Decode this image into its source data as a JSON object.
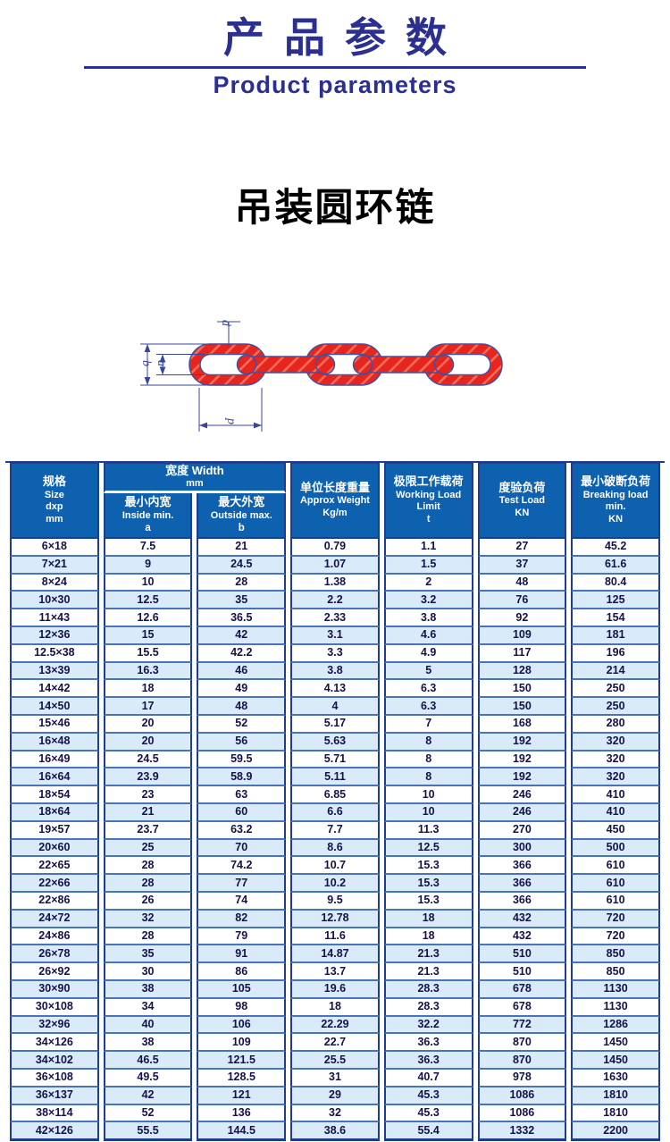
{
  "banner": {
    "title_cn": "产品参数",
    "title_en": "Product parameters"
  },
  "product": {
    "name": "吊装圆环链"
  },
  "diagram": {
    "dim_d": "d",
    "dim_a": "a",
    "dim_b": "b",
    "dim_p": "p"
  },
  "colors": {
    "accent_navy": "#2b2f90",
    "header_blue": "#0d61ae",
    "row_alt_blue": "#d9eaf8",
    "border_navy": "#1f3d8f",
    "row_line_blue": "#4a74ba",
    "chain_red": "#e8251d",
    "chain_outline_blue": "#4350a0"
  },
  "table": {
    "header": {
      "size": {
        "cn": "规格",
        "en": "Size",
        "l3": "dxp",
        "l4": "mm"
      },
      "width_group": {
        "cn_en": "宽度 Width",
        "unit": "mm"
      },
      "inside": {
        "cn": "最小内宽",
        "en": "Inside min.",
        "sub": "a"
      },
      "outside": {
        "cn": "最大外宽",
        "en": "Outside max.",
        "sub": "b"
      },
      "weight": {
        "cn": "单位长度重量",
        "en": "Approx Weight",
        "unit": "Kg/m"
      },
      "wll": {
        "cn": "极限工作载荷",
        "en": "Working Load Limit",
        "unit": "t"
      },
      "test": {
        "cn": "度验负荷",
        "en": "Test Load",
        "unit": "KN"
      },
      "breaking": {
        "cn": "最小破断负荷",
        "en": "Breaking load",
        "l3": "min.",
        "unit": "KN"
      }
    },
    "rows": [
      [
        "6×18",
        "7.5",
        "21",
        "0.79",
        "1.1",
        "27",
        "45.2"
      ],
      [
        "7×21",
        "9",
        "24.5",
        "1.07",
        "1.5",
        "37",
        "61.6"
      ],
      [
        "8×24",
        "10",
        "28",
        "1.38",
        "2",
        "48",
        "80.4"
      ],
      [
        "10×30",
        "12.5",
        "35",
        "2.2",
        "3.2",
        "76",
        "125"
      ],
      [
        "11×43",
        "12.6",
        "36.5",
        "2.33",
        "3.8",
        "92",
        "154"
      ],
      [
        "12×36",
        "15",
        "42",
        "3.1",
        "4.6",
        "109",
        "181"
      ],
      [
        "12.5×38",
        "15.5",
        "42.2",
        "3.3",
        "4.9",
        "117",
        "196"
      ],
      [
        "13×39",
        "16.3",
        "46",
        "3.8",
        "5",
        "128",
        "214"
      ],
      [
        "14×42",
        "18",
        "49",
        "4.13",
        "6.3",
        "150",
        "250"
      ],
      [
        "14×50",
        "17",
        "48",
        "4",
        "6.3",
        "150",
        "250"
      ],
      [
        "15×46",
        "20",
        "52",
        "5.17",
        "7",
        "168",
        "280"
      ],
      [
        "16×48",
        "20",
        "56",
        "5.63",
        "8",
        "192",
        "320"
      ],
      [
        "16×49",
        "24.5",
        "59.5",
        "5.71",
        "8",
        "192",
        "320"
      ],
      [
        "16×64",
        "23.9",
        "58.9",
        "5.11",
        "8",
        "192",
        "320"
      ],
      [
        "18×54",
        "23",
        "63",
        "6.85",
        "10",
        "246",
        "410"
      ],
      [
        "18×64",
        "21",
        "60",
        "6.6",
        "10",
        "246",
        "410"
      ],
      [
        "19×57",
        "23.7",
        "63.2",
        "7.7",
        "11.3",
        "270",
        "450"
      ],
      [
        "20×60",
        "25",
        "70",
        "8.6",
        "12.5",
        "300",
        "500"
      ],
      [
        "22×65",
        "28",
        "74.2",
        "10.7",
        "15.3",
        "366",
        "610"
      ],
      [
        "22×66",
        "28",
        "77",
        "10.2",
        "15.3",
        "366",
        "610"
      ],
      [
        "22×86",
        "26",
        "74",
        "9.5",
        "15.3",
        "366",
        "610"
      ],
      [
        "24×72",
        "32",
        "82",
        "12.78",
        "18",
        "432",
        "720"
      ],
      [
        "24×86",
        "28",
        "79",
        "11.6",
        "18",
        "432",
        "720"
      ],
      [
        "26×78",
        "35",
        "91",
        "14.87",
        "21.3",
        "510",
        "850"
      ],
      [
        "26×92",
        "30",
        "86",
        "13.7",
        "21.3",
        "510",
        "850"
      ],
      [
        "30×90",
        "38",
        "105",
        "19.6",
        "28.3",
        "678",
        "1130"
      ],
      [
        "30×108",
        "34",
        "98",
        "18",
        "28.3",
        "678",
        "1130"
      ],
      [
        "32×96",
        "40",
        "106",
        "22.29",
        "32.2",
        "772",
        "1286"
      ],
      [
        "34×126",
        "38",
        "109",
        "22.7",
        "36.3",
        "870",
        "1450"
      ],
      [
        "34×102",
        "46.5",
        "121.5",
        "25.5",
        "36.3",
        "870",
        "1450"
      ],
      [
        "36×108",
        "49.5",
        "128.5",
        "31",
        "40.7",
        "978",
        "1630"
      ],
      [
        "36×137",
        "42",
        "121",
        "29",
        "45.3",
        "1086",
        "1810"
      ],
      [
        "38×114",
        "52",
        "136",
        "32",
        "45.3",
        "1086",
        "1810"
      ],
      [
        "42×126",
        "55.5",
        "144.5",
        "38.6",
        "55.4",
        "1332",
        "2200"
      ]
    ]
  }
}
